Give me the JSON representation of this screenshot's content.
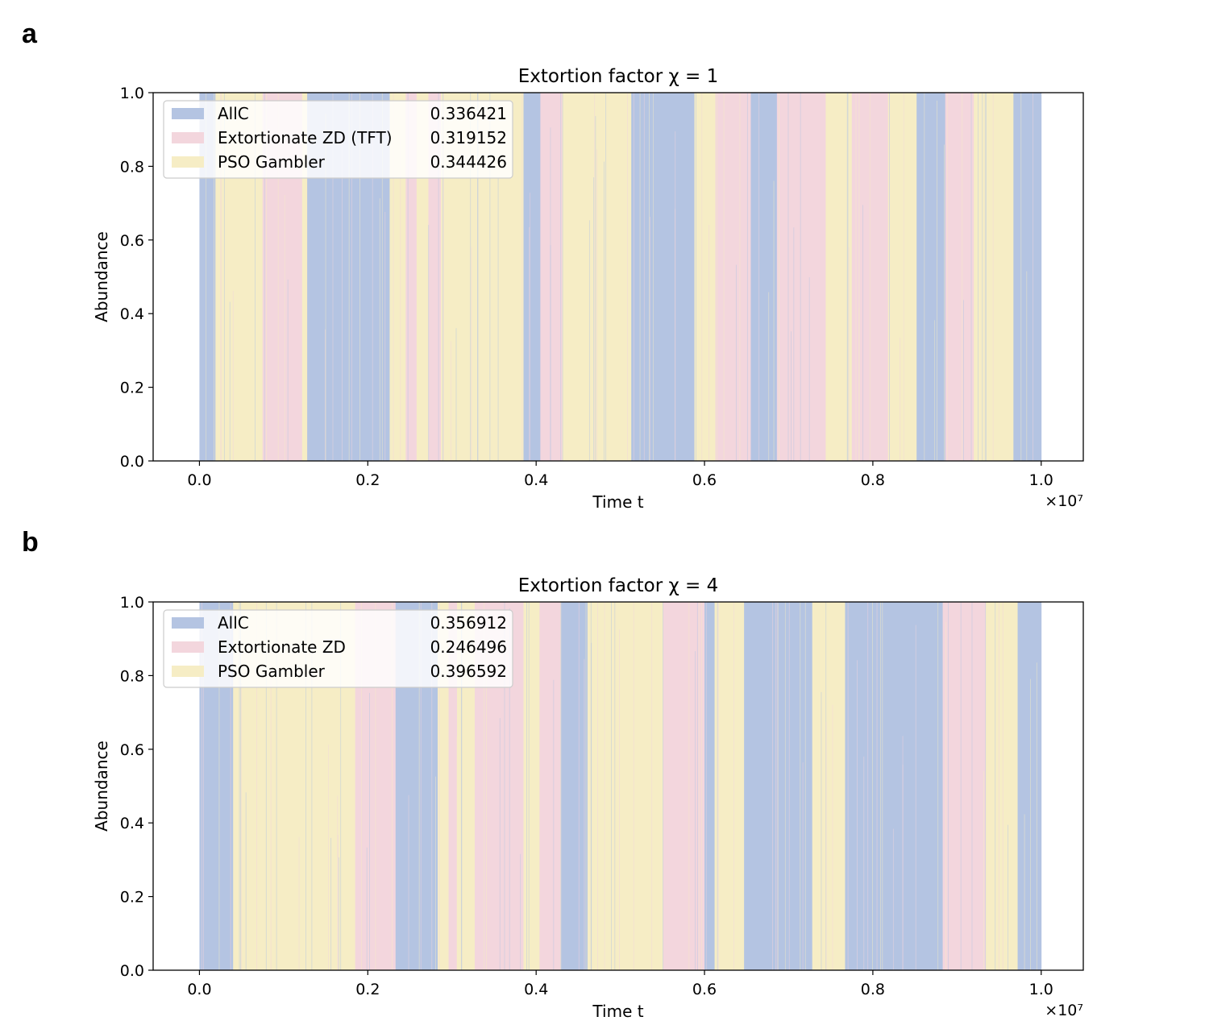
{
  "figure": {
    "panels": [
      "a",
      "b"
    ]
  },
  "colors": {
    "AllC": "#b4c4e2",
    "Extortionate": "#f3d6dd",
    "PSOGambler": "#f6edc5",
    "axes": "#000000"
  },
  "chart_data": [
    {
      "type": "area",
      "title": "Extortion factor χ = 1",
      "xlabel": "Time t",
      "ylabel": "Abundance",
      "x_offset_label": "×10⁷",
      "xlim": [
        -0.055,
        1.05
      ],
      "ylim": [
        0.0,
        1.0
      ],
      "x_ticks": [
        0.0,
        0.2,
        0.4,
        0.6,
        0.8,
        1.0
      ],
      "x_tick_labels": [
        "0.0",
        "0.2",
        "0.4",
        "0.6",
        "0.8",
        "1.0"
      ],
      "y_ticks": [
        0.0,
        0.2,
        0.4,
        0.6,
        0.8,
        1.0
      ],
      "y_tick_labels": [
        "0.0",
        "0.2",
        "0.4",
        "0.6",
        "0.8",
        "1.0"
      ],
      "grid": false,
      "legend_position": "top-left",
      "legend": [
        {
          "label": "AllC",
          "value": "0.336421",
          "color": "#b4c4e2"
        },
        {
          "label": "Extortionate ZD (TFT)",
          "value": "0.319152",
          "color": "#f3d6dd"
        },
        {
          "label": "PSO Gambler",
          "value": "0.344426",
          "color": "#f6edc5"
        }
      ],
      "dominance_segments": [
        {
          "x0": 0.0,
          "x1": 0.019,
          "type": 0
        },
        {
          "x0": 0.019,
          "x1": 0.075,
          "type": 2
        },
        {
          "x0": 0.075,
          "x1": 0.122,
          "type": 1
        },
        {
          "x0": 0.122,
          "x1": 0.128,
          "type": 2
        },
        {
          "x0": 0.128,
          "x1": 0.226,
          "type": 0
        },
        {
          "x0": 0.226,
          "x1": 0.245,
          "type": 2
        },
        {
          "x0": 0.245,
          "x1": 0.258,
          "type": 1
        },
        {
          "x0": 0.258,
          "x1": 0.272,
          "type": 2
        },
        {
          "x0": 0.272,
          "x1": 0.287,
          "type": 1
        },
        {
          "x0": 0.287,
          "x1": 0.385,
          "type": 2
        },
        {
          "x0": 0.385,
          "x1": 0.405,
          "type": 0
        },
        {
          "x0": 0.405,
          "x1": 0.431,
          "type": 1
        },
        {
          "x0": 0.431,
          "x1": 0.513,
          "type": 2
        },
        {
          "x0": 0.513,
          "x1": 0.588,
          "type": 0
        },
        {
          "x0": 0.588,
          "x1": 0.613,
          "type": 2
        },
        {
          "x0": 0.613,
          "x1": 0.655,
          "type": 1
        },
        {
          "x0": 0.655,
          "x1": 0.686,
          "type": 0
        },
        {
          "x0": 0.686,
          "x1": 0.744,
          "type": 1
        },
        {
          "x0": 0.744,
          "x1": 0.775,
          "type": 2
        },
        {
          "x0": 0.775,
          "x1": 0.818,
          "type": 1
        },
        {
          "x0": 0.818,
          "x1": 0.852,
          "type": 2
        },
        {
          "x0": 0.852,
          "x1": 0.886,
          "type": 0
        },
        {
          "x0": 0.886,
          "x1": 0.92,
          "type": 1
        },
        {
          "x0": 0.92,
          "x1": 0.967,
          "type": 2
        },
        {
          "x0": 0.967,
          "x1": 1.0,
          "type": 0
        }
      ]
    },
    {
      "type": "area",
      "title": "Extortion factor χ = 4",
      "xlabel": "Time t",
      "ylabel": "Abundance",
      "x_offset_label": "×10⁷",
      "xlim": [
        -0.055,
        1.05
      ],
      "ylim": [
        0.0,
        1.0
      ],
      "x_ticks": [
        0.0,
        0.2,
        0.4,
        0.6,
        0.8,
        1.0
      ],
      "x_tick_labels": [
        "0.0",
        "0.2",
        "0.4",
        "0.6",
        "0.8",
        "1.0"
      ],
      "y_ticks": [
        0.0,
        0.2,
        0.4,
        0.6,
        0.8,
        1.0
      ],
      "y_tick_labels": [
        "0.0",
        "0.2",
        "0.4",
        "0.6",
        "0.8",
        "1.0"
      ],
      "grid": false,
      "legend_position": "top-left",
      "legend": [
        {
          "label": "AllC",
          "value": "0.356912",
          "color": "#b4c4e2"
        },
        {
          "label": "Extortionate ZD",
          "value": "0.246496",
          "color": "#f3d6dd"
        },
        {
          "label": "PSO Gambler",
          "value": "0.396592",
          "color": "#f6edc5"
        }
      ],
      "dominance_segments": [
        {
          "x0": 0.0,
          "x1": 0.04,
          "type": 0
        },
        {
          "x0": 0.04,
          "x1": 0.185,
          "type": 2
        },
        {
          "x0": 0.185,
          "x1": 0.233,
          "type": 1
        },
        {
          "x0": 0.233,
          "x1": 0.283,
          "type": 0
        },
        {
          "x0": 0.283,
          "x1": 0.296,
          "type": 2
        },
        {
          "x0": 0.296,
          "x1": 0.306,
          "type": 1
        },
        {
          "x0": 0.306,
          "x1": 0.327,
          "type": 2
        },
        {
          "x0": 0.327,
          "x1": 0.385,
          "type": 1
        },
        {
          "x0": 0.385,
          "x1": 0.404,
          "type": 2
        },
        {
          "x0": 0.404,
          "x1": 0.429,
          "type": 1
        },
        {
          "x0": 0.429,
          "x1": 0.461,
          "type": 0
        },
        {
          "x0": 0.461,
          "x1": 0.551,
          "type": 2
        },
        {
          "x0": 0.551,
          "x1": 0.6,
          "type": 1
        },
        {
          "x0": 0.6,
          "x1": 0.612,
          "type": 0
        },
        {
          "x0": 0.612,
          "x1": 0.647,
          "type": 2
        },
        {
          "x0": 0.647,
          "x1": 0.728,
          "type": 0
        },
        {
          "x0": 0.728,
          "x1": 0.767,
          "type": 2
        },
        {
          "x0": 0.767,
          "x1": 0.883,
          "type": 0
        },
        {
          "x0": 0.883,
          "x1": 0.934,
          "type": 1
        },
        {
          "x0": 0.934,
          "x1": 0.972,
          "type": 2
        },
        {
          "x0": 0.972,
          "x1": 1.0,
          "type": 0
        }
      ]
    }
  ]
}
